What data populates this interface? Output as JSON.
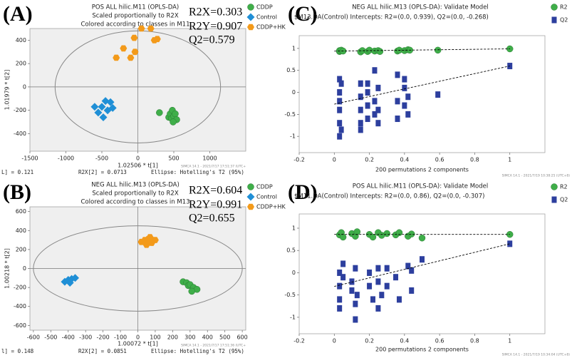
{
  "chart_data": [
    {
      "type": "scatter",
      "panel": "(A)",
      "title": [
        "POS ALL hilic.M11 (OPLS-DA)",
        "Scaled proportionally to R2X",
        "Colored according to classes in M11"
      ],
      "stats": [
        "R2X=0.303",
        "R2Y=0.907",
        "Q2=0.579"
      ],
      "xlabel": "1.02506 * t[1]",
      "ylabel": "1.01979 * t[2]",
      "footer": [
        "L] = 0.121",
        "R2X[2] = 0.0713",
        "Ellipse: Hotelling's T2 (95%)"
      ],
      "software": "SIMCA 14.1 - 2021/7/17 17:51:37 (UTC+",
      "xlim": [
        -1500,
        1500
      ],
      "xticks": [
        -1500,
        -1000,
        -500,
        0,
        500,
        1000
      ],
      "ylim": [
        -550,
        500
      ],
      "yticks": [
        -400,
        -200,
        0,
        200,
        400
      ],
      "ellipse": {
        "rx": 1150,
        "ry": 480
      },
      "series": [
        {
          "name": "CDDP",
          "color": "#3fae49",
          "marker": "circle",
          "x": [
            300,
            430,
            450,
            470,
            480,
            500,
            520,
            540,
            490
          ],
          "values": [
            -220,
            -260,
            -230,
            -270,
            -200,
            -250,
            -230,
            -280,
            -300
          ]
        },
        {
          "name": "Control",
          "color": "#1f8fd6",
          "marker": "diamond",
          "x": [
            -600,
            -550,
            -500,
            -480,
            -450,
            -420,
            -380,
            -350
          ],
          "values": [
            -170,
            -220,
            -170,
            -260,
            -120,
            -200,
            -130,
            -180
          ]
        },
        {
          "name": "CDDP+HK",
          "color": "#f39a1a",
          "marker": "hexagon",
          "x": [
            -300,
            -200,
            -100,
            -40,
            -50,
            50,
            180,
            230,
            270
          ],
          "values": [
            250,
            330,
            250,
            300,
            420,
            500,
            500,
            400,
            410
          ]
        }
      ]
    },
    {
      "type": "scatter",
      "panel": "(B)",
      "title": [
        "NEG ALL hilic.M13 (OPLS-DA)",
        "Scaled proportionally to R2X",
        "Colored according to classes in M13"
      ],
      "stats": [
        "R2X=0.604",
        "R2Y=0.991",
        "Q2=0.655"
      ],
      "xlabel": "1.00072 * t[1]",
      "ylabel": "1.00218 * t[2]",
      "footer": [
        "l] = 0.148",
        "R2X[2] = 0.0851",
        "Ellipse: Hotelling's T2 (95%)"
      ],
      "software": "SIMCA 14.1 - 2021/7/17 17:51:36 (UTC+",
      "xlim": [
        -620,
        620
      ],
      "xticks": [
        -600,
        -500,
        -400,
        -300,
        -200,
        -100,
        0,
        100,
        200,
        300,
        400,
        500,
        600
      ],
      "ylim": [
        -650,
        650
      ],
      "yticks": [
        -600,
        -400,
        -200,
        0,
        200,
        400,
        600
      ],
      "ellipse": {
        "rx": 600,
        "ry": 450
      },
      "series": [
        {
          "name": "CDDP",
          "color": "#3fae49",
          "marker": "circle",
          "x": [
            260,
            280,
            290,
            300,
            320,
            340,
            310
          ],
          "values": [
            -140,
            -150,
            -180,
            -170,
            -200,
            -220,
            -240
          ]
        },
        {
          "name": "Control",
          "color": "#1f8fd6",
          "marker": "diamond",
          "x": [
            -420,
            -400,
            -390,
            -380,
            -360
          ],
          "values": [
            -140,
            -120,
            -150,
            -110,
            -100
          ]
        },
        {
          "name": "CDDP+HK",
          "color": "#f39a1a",
          "marker": "hexagon",
          "x": [
            20,
            40,
            50,
            60,
            70,
            80,
            100
          ],
          "values": [
            280,
            300,
            250,
            310,
            330,
            270,
            300
          ]
        }
      ]
    },
    {
      "type": "scatter",
      "panel": "(C)",
      "title": [
        "NEG ALL hilic.M13 (OPLS-DA): Validate Model",
        "$M13.DA(Control) Intercepts: R2=(0.0, 0.939), Q2=(0.0, -0.268)"
      ],
      "xlabel": "200 permutations 2 components",
      "software": "SIMCA 14.1 - 2021/7/19 10:38:25 (UTC+8)",
      "xlim": [
        -0.2,
        1.2
      ],
      "xticks": [
        -0.2,
        0,
        0.2,
        0.4,
        0.6,
        0.8,
        1
      ],
      "ylim": [
        -1.37,
        1.29
      ],
      "yticks": [
        -1,
        -0.5,
        0,
        0.5,
        1
      ],
      "intercepts": [
        0.939,
        -0.268
      ],
      "series": [
        {
          "name": "R2",
          "color": "#3fae49",
          "marker": "circle",
          "x": [
            0.03,
            0.03,
            0.04,
            0.05,
            0.15,
            0.16,
            0.19,
            0.2,
            0.23,
            0.25,
            0.26,
            0.36,
            0.37,
            0.4,
            0.42,
            0.43,
            0.59,
            1
          ],
          "values": [
            0.93,
            0.95,
            0.96,
            0.94,
            0.92,
            0.95,
            0.93,
            0.96,
            0.94,
            0.95,
            0.93,
            0.94,
            0.96,
            0.95,
            0.97,
            0.96,
            0.96,
            0.99
          ]
        },
        {
          "name": "Q2",
          "color": "#2d3f9e",
          "marker": "square",
          "x": [
            0.03,
            0.03,
            0.03,
            0.03,
            0.03,
            0.03,
            0.04,
            0.04,
            0.15,
            0.15,
            0.15,
            0.15,
            0.15,
            0.19,
            0.19,
            0.19,
            0.19,
            0.23,
            0.23,
            0.23,
            0.25,
            0.25,
            0.25,
            0.36,
            0.36,
            0.36,
            0.4,
            0.4,
            0.4,
            0.42,
            0.42,
            0.59,
            1
          ],
          "values": [
            -0.4,
            -0.7,
            -0.2,
            0.0,
            0.3,
            -1.0,
            -0.85,
            0.2,
            -0.4,
            -0.7,
            -0.1,
            0.2,
            -0.85,
            -0.3,
            -0.6,
            0.0,
            0.2,
            -0.5,
            -0.2,
            0.5,
            -0.7,
            -0.4,
            0.1,
            -0.6,
            -0.2,
            0.4,
            -0.3,
            0.1,
            0.3,
            -0.5,
            -0.1,
            -0.05,
            0.6
          ]
        }
      ]
    },
    {
      "type": "scatter",
      "panel": "(D)",
      "title": [
        "POS ALL hilic.M11 (OPLS-DA): Validate Model",
        "$M11.DA(Control) Intercepts: R2=(0.0, 0.86), Q2=(0.0, -0.307)"
      ],
      "xlabel": "200 permutations 2 components",
      "software": "SIMCA 14.1 - 2021/7/19 10:34:04 (UTC+8)",
      "xlim": [
        -0.2,
        1.2
      ],
      "xticks": [
        -0.2,
        0,
        0.2,
        0.4,
        0.6,
        0.8,
        1
      ],
      "ylim": [
        -1.37,
        1.32
      ],
      "yticks": [
        -1,
        -0.5,
        0,
        0.5,
        1
      ],
      "intercepts": [
        0.86,
        -0.307
      ],
      "series": [
        {
          "name": "R2",
          "color": "#3fae49",
          "marker": "circle",
          "x": [
            0.03,
            0.04,
            0.05,
            0.1,
            0.12,
            0.13,
            0.2,
            0.22,
            0.25,
            0.27,
            0.3,
            0.35,
            0.37,
            0.42,
            0.44,
            0.5,
            1
          ],
          "values": [
            0.85,
            0.9,
            0.8,
            0.88,
            0.82,
            0.92,
            0.86,
            0.8,
            0.9,
            0.84,
            0.88,
            0.85,
            0.9,
            0.82,
            0.87,
            0.78,
            0.86
          ]
        },
        {
          "name": "Q2",
          "color": "#2d3f9e",
          "marker": "square",
          "x": [
            0.03,
            0.03,
            0.03,
            0.03,
            0.05,
            0.05,
            0.1,
            0.1,
            0.12,
            0.12,
            0.12,
            0.13,
            0.2,
            0.2,
            0.22,
            0.25,
            0.25,
            0.25,
            0.27,
            0.3,
            0.3,
            0.35,
            0.37,
            0.42,
            0.44,
            0.44,
            0.5,
            1
          ],
          "values": [
            -0.3,
            -0.6,
            0.0,
            -0.8,
            -0.1,
            0.2,
            -0.4,
            -0.2,
            -0.7,
            0.1,
            -1.05,
            -0.5,
            -0.3,
            0.0,
            -0.6,
            -0.8,
            -0.2,
            0.1,
            -0.5,
            -0.3,
            0.1,
            -0.1,
            -0.6,
            0.15,
            -0.4,
            0.05,
            0.3,
            0.65
          ]
        }
      ]
    }
  ]
}
